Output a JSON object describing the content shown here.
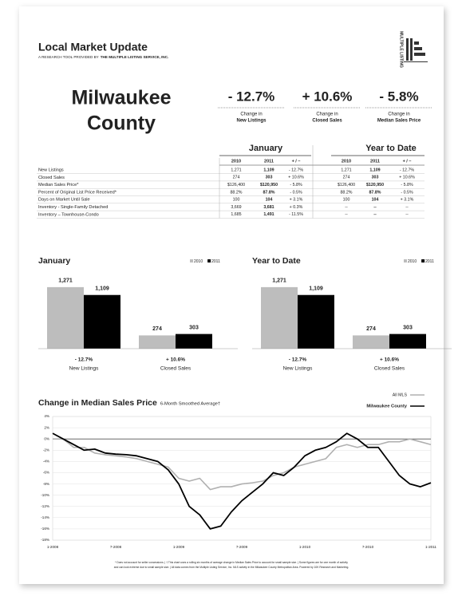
{
  "header": {
    "title": "Local Market Update",
    "subtitle_prefix": "A RESEARCH TOOL PROVIDED BY",
    "subtitle_org": "THE MULTIPLE LISTING SERVICE, INC.",
    "logo": "MULTIPLE LISTING"
  },
  "area": [
    "Milwaukee",
    "County"
  ],
  "summary": [
    {
      "change": "- 12.7%",
      "caption": "Change in",
      "metric": "New Listings"
    },
    {
      "change": "+ 10.6%",
      "caption": "Change in",
      "metric": "Closed Sales"
    },
    {
      "change": "- 5.8%",
      "caption": "Change in",
      "metric": "Median Sales Price"
    }
  ],
  "table": {
    "groups": [
      "January",
      "Year to Date"
    ],
    "columns": [
      "2010",
      "2011",
      "+ / –",
      "2010",
      "2011",
      "+ / –"
    ],
    "rows": [
      [
        "New Listings",
        "1,271",
        "1,109",
        "- 12.7%",
        "1,271",
        "1,109",
        "- 12.7%"
      ],
      [
        "Closed Sales",
        "274",
        "303",
        "+ 10.6%",
        "274",
        "303",
        "+ 10.6%"
      ],
      [
        "Median Sales Price*",
        "$126,400",
        "$120,950",
        "- 5.8%",
        "$126,400",
        "$120,950",
        "- 5.8%"
      ],
      [
        "Percent of Original List Price Received*",
        "88.2%",
        "87.8%",
        "- 0.5%",
        "88.2%",
        "87.8%",
        "- 0.5%"
      ],
      [
        "Days on Market Until Sale",
        "100",
        "104",
        "+ 3.1%",
        "100",
        "104",
        "+ 3.1%"
      ],
      [
        "Inventory - Single-Family Detached",
        "3,669",
        "3,681",
        "+ 0.3%",
        "--",
        "--",
        "--"
      ],
      [
        "Inventory – Townhouse-Condo",
        "1,685",
        "1,491",
        "- 11.5%",
        "--",
        "--",
        "--"
      ]
    ]
  },
  "chart_data": [
    {
      "type": "bar",
      "title": "January",
      "categories": [
        "New Listings",
        "Closed Sales"
      ],
      "changes": [
        "- 12.7%",
        "+ 10.6%"
      ],
      "series": [
        {
          "name": "2010",
          "color": "#bdbdbd",
          "values": [
            1271,
            274
          ],
          "value_labels": [
            "1,271",
            "274"
          ]
        },
        {
          "name": "2011",
          "color": "#000000",
          "values": [
            1109,
            303
          ],
          "value_labels": [
            "1,109",
            "303"
          ]
        }
      ],
      "ylim": [
        0,
        1500
      ]
    },
    {
      "type": "bar",
      "title": "Year to Date",
      "categories": [
        "New Listings",
        "Closed Sales"
      ],
      "changes": [
        "- 12.7%",
        "+ 10.6%"
      ],
      "series": [
        {
          "name": "2010",
          "color": "#bdbdbd",
          "values": [
            1271,
            274
          ],
          "value_labels": [
            "1,271",
            "274"
          ]
        },
        {
          "name": "2011",
          "color": "#000000",
          "values": [
            1109,
            303
          ],
          "value_labels": [
            "1,109",
            "303"
          ]
        }
      ],
      "ylim": [
        0,
        1500
      ]
    },
    {
      "type": "line",
      "title": "Change in Median Sales Price",
      "subtitle": "6-Month Smoothed Average†",
      "categories": [
        "1-2008",
        null,
        null,
        null,
        null,
        null,
        "7-2008",
        null,
        null,
        null,
        null,
        null,
        "1-2009",
        null,
        null,
        null,
        null,
        null,
        "7-2009",
        null,
        null,
        null,
        null,
        null,
        "1-2010",
        null,
        null,
        null,
        null,
        null,
        "7-2010",
        null,
        null,
        null,
        null,
        null,
        "1-2011"
      ],
      "series": [
        {
          "name": "All MLS",
          "color": "#b0b0b0",
          "values": [
            0,
            0,
            -1.5,
            -1.5,
            -2.5,
            -2.8,
            -3,
            -3.2,
            -3.5,
            -4,
            -4.5,
            -5,
            -7,
            -7.5,
            -7,
            -9,
            -8.5,
            -8.5,
            -8,
            -7.8,
            -7.5,
            -6.5,
            -6,
            -5,
            -4.5,
            -4,
            -3.5,
            -1.5,
            -1,
            -1.5,
            -1,
            -1,
            -0.5,
            -0.5,
            0,
            -0.5,
            -1
          ]
        },
        {
          "name": "Milwaukee County",
          "color": "#000000",
          "values": [
            1,
            0,
            -1,
            -2,
            -1.8,
            -2.5,
            -2.7,
            -2.8,
            -3,
            -3.5,
            -4,
            -5.5,
            -8,
            -12,
            -13.5,
            -16,
            -15.5,
            -13,
            -11,
            -9.5,
            -8,
            -6,
            -6.5,
            -5,
            -3,
            -2,
            -1.5,
            -0.5,
            1,
            0,
            -1.5,
            -1.5,
            -4,
            -6.5,
            -8,
            -8.5,
            -7.8
          ]
        }
      ],
      "ylim": [
        -18,
        4
      ],
      "yticks": [
        {
          "value": 4,
          "label": "4%"
        },
        {
          "value": 2,
          "label": "2%"
        },
        {
          "value": 0,
          "label": "0%"
        },
        {
          "value": -2,
          "label": "-2%"
        },
        {
          "value": -4,
          "label": "-4%"
        },
        {
          "value": -6,
          "label": "-6%"
        },
        {
          "value": -8,
          "label": "-8%"
        },
        {
          "value": -10,
          "label": "-10%"
        },
        {
          "value": -12,
          "label": "-12%"
        },
        {
          "value": -14,
          "label": "-14%"
        },
        {
          "value": -16,
          "label": "-16%"
        },
        {
          "value": -18,
          "label": "-18%"
        }
      ],
      "grid": true
    }
  ],
  "footnote": [
    "* Does not account for seller concessions. | † This chart uses a rolling six months of average change in Median Sales Price to account for small sample size. | Some figures are for one month of activity",
    "and can look extreme due to small sample size. | All data comes from the Multiple Listing Service, Inc. MLS activity in the Milwaukee County Metropolitan Area. Powered by 10K Research and Marketing."
  ]
}
